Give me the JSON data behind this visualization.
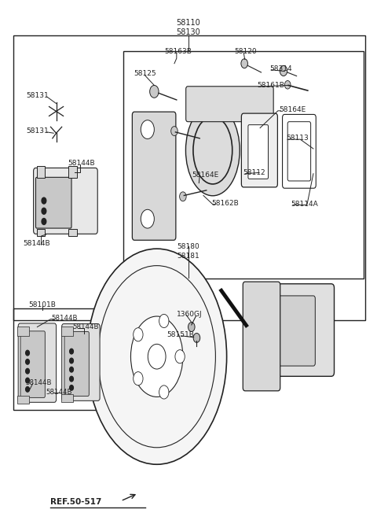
{
  "bg_color": "#ffffff",
  "line_color": "#222222",
  "text_color": "#222222",
  "fig_width": 4.8,
  "fig_height": 6.66,
  "dpi": 100,
  "top_labels": [
    "58110",
    "58130"
  ],
  "ref_label": "REF.50-517"
}
